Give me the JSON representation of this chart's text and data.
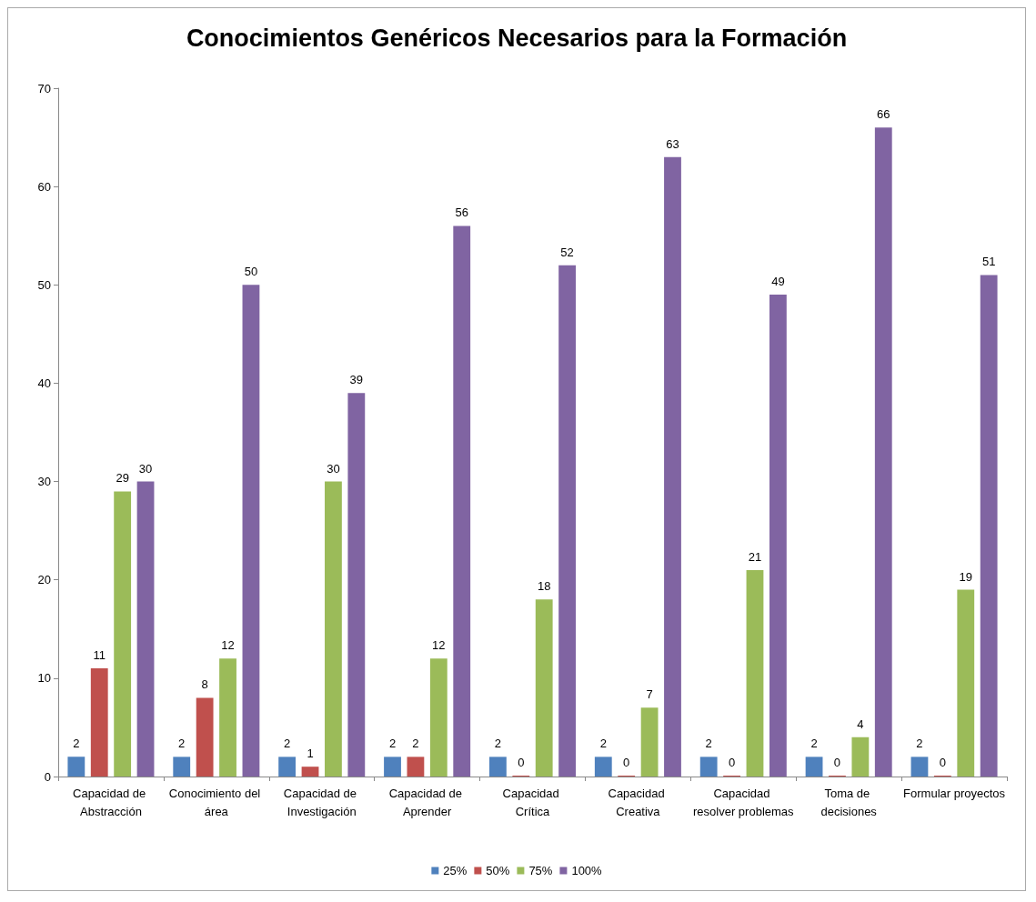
{
  "chart_data": {
    "type": "bar",
    "title": "Conocimientos Genéricos Necesarios para la Formación",
    "categories": [
      "Capacidad de Abstracción",
      "Conocimiento del área",
      "Capacidad de Investigación",
      "Capacidad de Aprender",
      "Capacidad Crítica",
      "Capacidad Creativa",
      "Capacidad resolver problemas",
      "Toma de decisiones",
      "Formular proyectos"
    ],
    "series": [
      {
        "name": "25%",
        "color": "#4f81bd",
        "values": [
          2,
          2,
          2,
          2,
          2,
          2,
          2,
          2,
          2
        ]
      },
      {
        "name": "50%",
        "color": "#c0504d",
        "values": [
          11,
          8,
          1,
          2,
          0,
          0,
          0,
          0,
          0
        ]
      },
      {
        "name": "75%",
        "color": "#9bbb59",
        "values": [
          29,
          12,
          30,
          12,
          18,
          7,
          21,
          4,
          19
        ]
      },
      {
        "name": "100%",
        "color": "#8064a2",
        "values": [
          30,
          50,
          39,
          56,
          52,
          63,
          49,
          66,
          51
        ]
      }
    ],
    "ylim": [
      0,
      70
    ],
    "yticks": [
      0,
      10,
      20,
      30,
      40,
      50,
      60,
      70
    ],
    "grid": false,
    "legend": "bottom",
    "data_labels": true
  }
}
